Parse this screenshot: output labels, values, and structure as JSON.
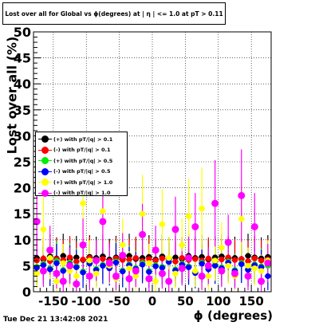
{
  "title": "Lost over all for Global vs ϕ(degrees) at | η | <= 1.0 at pT > 0.11",
  "timestamp": "Tue Dec 21 13:42:08 2021",
  "legend": [
    {
      "label": "(+) with pT/|q| > 0.1",
      "color": "#000000"
    },
    {
      "label": "(-) with pT/|q| > 0.1",
      "color": "#ff0000"
    },
    {
      "label": "(+) with pT/|q| > 0.5",
      "color": "#00ee00"
    },
    {
      "label": "(-) with pT/|q| > 0.5",
      "color": "#0000ff"
    },
    {
      "label": "(+) with pT/|q| > 1.0",
      "color": "#ffff00"
    },
    {
      "label": "(-) with pT/|q| > 1.0",
      "color": "#ff00ff"
    }
  ],
  "chart_data": {
    "type": "scatter",
    "title": "Lost over all for Global vs ϕ(degrees) at | η | <= 1.0 at pT > 0.11",
    "xlabel": "ϕ (degrees)",
    "ylabel": "Lost over all (%)",
    "xlim": [
      -180,
      180
    ],
    "ylim": [
      0,
      50
    ],
    "x_ticks": [
      -150,
      -100,
      -50,
      0,
      50,
      100,
      150
    ],
    "y_ticks": [
      0,
      5,
      10,
      15,
      20,
      25,
      30,
      35,
      40,
      45,
      50
    ],
    "grid": true,
    "legend_position": "middle-left",
    "series": [
      {
        "name": "(+) with pT/|q| > 0.1",
        "color": "#000000",
        "x": [
          -175,
          -165,
          -155,
          -145,
          -135,
          -125,
          -115,
          -105,
          -95,
          -85,
          -75,
          -65,
          -55,
          -45,
          -35,
          -25,
          -15,
          -5,
          5,
          15,
          25,
          35,
          45,
          55,
          65,
          75,
          85,
          95,
          105,
          115,
          125,
          135,
          145,
          155,
          165,
          175
        ],
        "y": [
          6.5,
          6.2,
          6.8,
          6.4,
          6.9,
          6.3,
          6.6,
          6.1,
          6.7,
          6.5,
          6.8,
          6.2,
          6.6,
          6.4,
          6.9,
          6.3,
          6.5,
          6.7,
          6.2,
          6.8,
          6.4,
          6.6,
          6.3,
          6.9,
          6.5,
          6.7,
          6.2,
          6.6,
          6.8,
          6.4,
          6.5,
          6.3,
          6.9,
          6.6,
          6.4,
          6.7
        ]
      },
      {
        "name": "(-) with pT/|q| > 0.1",
        "color": "#ff0000",
        "x": [
          -175,
          -165,
          -155,
          -145,
          -135,
          -125,
          -115,
          -105,
          -95,
          -85,
          -75,
          -65,
          -55,
          -45,
          -35,
          -25,
          -15,
          -5,
          5,
          15,
          25,
          35,
          45,
          55,
          65,
          75,
          85,
          95,
          105,
          115,
          125,
          135,
          145,
          155,
          165,
          175
        ],
        "y": [
          6.0,
          6.4,
          5.9,
          6.3,
          6.1,
          6.6,
          5.8,
          6.2,
          6.5,
          6.0,
          6.3,
          5.9,
          6.4,
          6.1,
          6.2,
          6.5,
          5.9,
          6.3,
          6.0,
          6.4,
          6.2,
          5.8,
          6.5,
          6.1,
          6.3,
          6.0,
          6.4,
          5.9,
          6.2,
          6.6,
          6.1,
          6.3,
          5.9,
          6.4,
          6.0,
          6.2
        ]
      },
      {
        "name": "(+) with pT/|q| > 0.5",
        "color": "#00ee00",
        "x": [
          -175,
          -165,
          -155,
          -145,
          -135,
          -125,
          -115,
          -105,
          -95,
          -85,
          -75,
          -65,
          -55,
          -45,
          -35,
          -25,
          -15,
          -5,
          5,
          15,
          25,
          35,
          45,
          55,
          65,
          75,
          85,
          95,
          105,
          115,
          125,
          135,
          145,
          155,
          165,
          175
        ],
        "y": [
          4.8,
          5.4,
          4.5,
          5.9,
          4.2,
          5.6,
          4.9,
          3.9,
          5.7,
          4.4,
          5.2,
          4.7,
          5.8,
          4.1,
          5.3,
          4.6,
          5.5,
          4.0,
          5.1,
          4.8,
          5.9,
          4.3,
          5.4,
          4.9,
          3.8,
          5.6,
          4.5,
          5.2,
          4.7,
          5.8,
          4.2,
          5.5,
          4.4,
          5.3,
          4.9,
          5.0
        ]
      },
      {
        "name": "(-) with pT/|q| > 0.5",
        "color": "#0000ff",
        "x": [
          -175,
          -165,
          -155,
          -145,
          -135,
          -125,
          -115,
          -105,
          -95,
          -85,
          -75,
          -65,
          -55,
          -45,
          -35,
          -25,
          -15,
          -5,
          5,
          15,
          25,
          35,
          45,
          55,
          65,
          75,
          85,
          95,
          105,
          115,
          125,
          135,
          145,
          155,
          165,
          175
        ],
        "y": [
          4.6,
          5.1,
          4.3,
          5.5,
          4.0,
          5.3,
          4.7,
          3.7,
          5.4,
          4.2,
          5.0,
          4.5,
          5.6,
          3.9,
          5.1,
          4.4,
          5.2,
          3.8,
          4.9,
          4.6,
          5.7,
          4.1,
          5.2,
          4.7,
          3.6,
          5.4,
          4.3,
          5.0,
          4.5,
          5.6,
          4.0,
          5.3,
          4.2,
          5.1,
          4.7,
          3.0
        ]
      },
      {
        "name": "(+) with pT/|q| > 1.0",
        "color": "#ffff00",
        "x": [
          -175,
          -165,
          -155,
          -145,
          -135,
          -125,
          -115,
          -105,
          -95,
          -85,
          -75,
          -65,
          -55,
          -45,
          -35,
          -25,
          -15,
          -5,
          5,
          15,
          25,
          35,
          45,
          55,
          65,
          75,
          85,
          95,
          105,
          115,
          125,
          135,
          145,
          155,
          165,
          175
        ],
        "y": [
          3.5,
          12.0,
          6.5,
          2.0,
          5.5,
          4.0,
          3.0,
          17.0,
          6.0,
          3.5,
          15.5,
          5.0,
          2.5,
          9.0,
          4.5,
          3.0,
          15.0,
          5.5,
          2.0,
          13.0,
          6.5,
          3.5,
          9.0,
          14.5,
          4.0,
          16.0,
          3.0,
          6.0,
          8.5,
          5.0,
          3.0,
          14.0,
          5.0,
          4.5,
          4.0,
          6.0
        ]
      },
      {
        "name": "(-) with pT/|q| > 1.0",
        "color": "#ff00ff",
        "x": [
          -175,
          -165,
          -155,
          -145,
          -135,
          -125,
          -115,
          -105,
          -95,
          -85,
          -75,
          -65,
          -55,
          -45,
          -35,
          -25,
          -15,
          -5,
          5,
          15,
          25,
          35,
          45,
          55,
          65,
          75,
          85,
          95,
          105,
          115,
          125,
          135,
          145,
          155,
          165,
          175
        ],
        "y": [
          13.5,
          4.0,
          8.0,
          3.5,
          2.0,
          5.0,
          1.5,
          9.0,
          3.0,
          6.0,
          13.5,
          5.5,
          3.0,
          7.0,
          2.5,
          4.0,
          11.0,
          2.5,
          8.0,
          3.5,
          2.0,
          12.0,
          4.5,
          6.5,
          12.5,
          3.0,
          5.0,
          17.0,
          4.0,
          9.5,
          3.5,
          18.5,
          3.0,
          12.5,
          2.0,
          5.5
        ]
      }
    ]
  }
}
